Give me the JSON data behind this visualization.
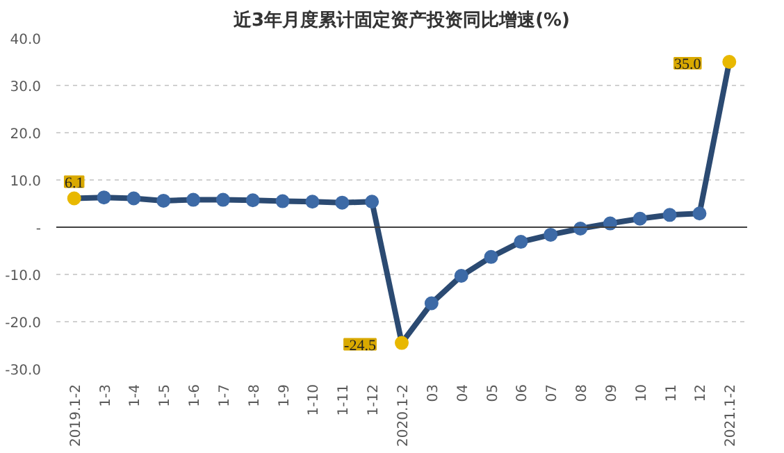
{
  "chart_data": {
    "type": "line",
    "title": "近3年月度累计固定资产投资同比增速(%)",
    "categories": [
      "2019.1-2",
      "1-3",
      "1-4",
      "1-5",
      "1-6",
      "1-7",
      "1-8",
      "1-9",
      "1-10",
      "1-11",
      "1-12",
      "2020.1-2",
      "03",
      "04",
      "05",
      "06",
      "07",
      "08",
      "09",
      "10",
      "11",
      "12",
      "2021.1-2"
    ],
    "series": [
      {
        "color": "#2b4a72",
        "values": [
          6.1,
          6.3,
          6.1,
          5.6,
          5.8,
          5.8,
          5.7,
          5.5,
          5.4,
          5.2,
          5.4,
          -24.5,
          -16.1,
          -10.3,
          -6.3,
          -3.1,
          -1.6,
          -0.3,
          0.8,
          1.8,
          2.6,
          2.9,
          35.0
        ],
        "colors": [
          "#e8b800",
          "#3d6aa6",
          "#3d6aa6",
          "#3d6aa6",
          "#3d6aa6",
          "#3d6aa6",
          "#3d6aa6",
          "#3d6aa6",
          "#3d6aa6",
          "#3d6aa6",
          "#3d6aa6",
          "#e8b800",
          "#3d6aa6",
          "#3d6aa6",
          "#3d6aa6",
          "#3d6aa6",
          "#3d6aa6",
          "#3d6aa6",
          "#3d6aa6",
          "#3d6aa6",
          "#3d6aa6",
          "#3d6aa6",
          "#e8b800"
        ],
        "value_labels": [
          "6.1",
          null,
          null,
          null,
          null,
          null,
          null,
          null,
          null,
          null,
          null,
          "-24.5",
          null,
          null,
          null,
          null,
          null,
          null,
          null,
          null,
          null,
          null,
          "35.0"
        ]
      }
    ],
    "ylim": [
      -30,
      40
    ],
    "yticks": [
      {
        "value": -30,
        "label": "-30.0"
      },
      {
        "value": -20,
        "label": "-20.0"
      },
      {
        "value": -10,
        "label": "-10.0"
      },
      {
        "value": 0,
        "label": "-"
      },
      {
        "value": 10,
        "label": "10.0"
      },
      {
        "value": 20,
        "label": "20.0"
      },
      {
        "value": 30,
        "label": "30.0"
      },
      {
        "value": 40,
        "label": "40.0"
      }
    ],
    "ref_lines": [
      {
        "axis": "y",
        "value": 0,
        "color": "#404040",
        "line_style": "solid"
      }
    ],
    "grid": "y",
    "marker": "circle",
    "line_style": "solid"
  }
}
